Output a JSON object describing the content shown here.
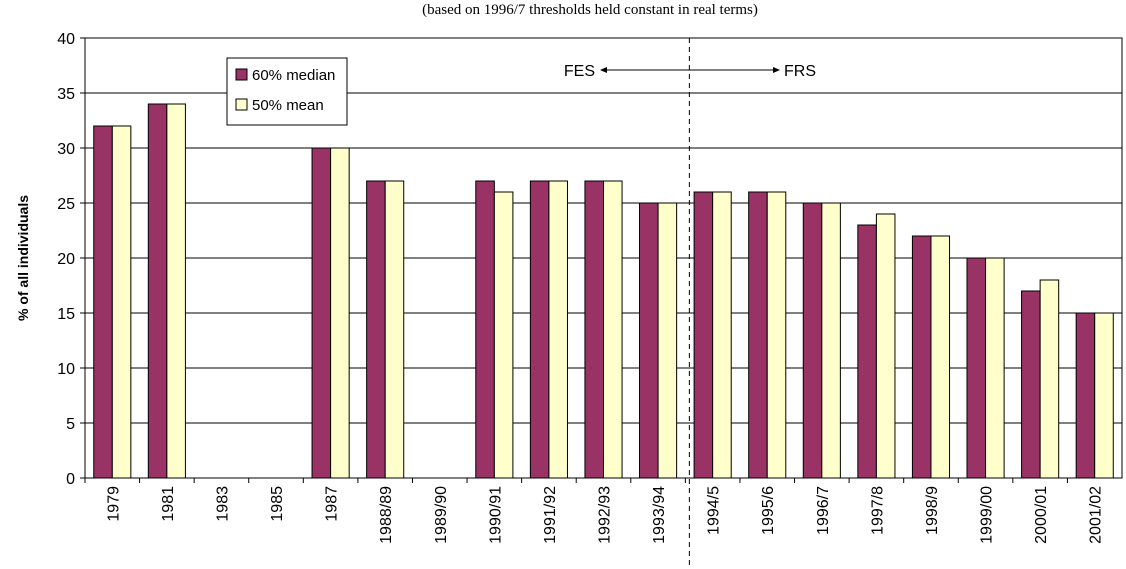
{
  "chart_data": {
    "type": "bar",
    "subtitle": "(based on 1996/7 thresholds held constant in real terms)",
    "y_label": "% of all individuals",
    "categories": [
      "1979",
      "1981",
      "1983",
      "1985",
      "1987",
      "1988/89",
      "1989/90",
      "1990/91",
      "1991/92",
      "1992/93",
      "1993/94",
      "1994/5",
      "1995/6",
      "1996/7",
      "1997/8",
      "1998/9",
      "1999/00",
      "2000/01",
      "2001/02"
    ],
    "series": [
      {
        "name": "60% median",
        "color": "#993366",
        "values": [
          32,
          34,
          null,
          null,
          30,
          27,
          null,
          27,
          27,
          27,
          25,
          26,
          26,
          25,
          23,
          22,
          20,
          17,
          15
        ]
      },
      {
        "name": "50% mean",
        "color": "#ffffcc",
        "values": [
          32,
          34,
          null,
          null,
          30,
          27,
          null,
          26,
          27,
          27,
          25,
          26,
          26,
          25,
          24,
          22,
          20,
          18,
          15
        ]
      }
    ],
    "annotations": [
      "FES",
      "FRS"
    ],
    "ylim": [
      0,
      40
    ],
    "yticks": [
      0,
      5,
      10,
      15,
      20,
      25,
      30,
      35,
      40
    ],
    "grid": true
  }
}
